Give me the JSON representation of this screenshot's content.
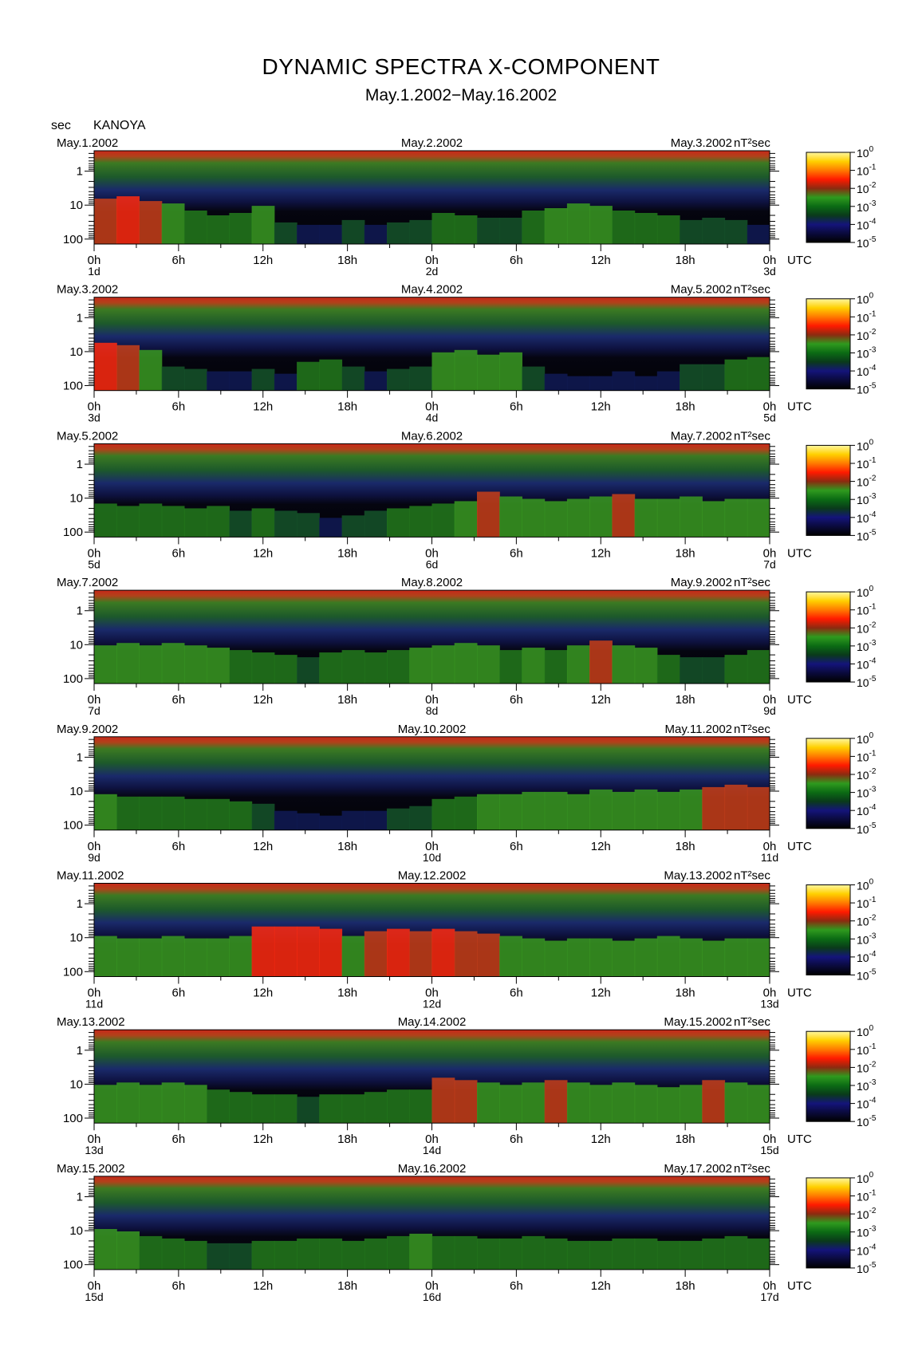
{
  "title": "DYNAMIC SPECTRA X-COMPONENT",
  "subtitle": "May.1.2002−May.16.2002",
  "y_unit_label": "sec",
  "station": "KANOYA",
  "colorbar_unit": "nT²sec",
  "utc_label": "UTC",
  "colors": {
    "colormap": [
      "#000000",
      "#0a0a3c",
      "#14147a",
      "#0a3a1a",
      "#0b6b14",
      "#2f9a1e",
      "#8c2a10",
      "#ff1a00",
      "#ff7a00",
      "#ffd000",
      "#fff7a0"
    ]
  },
  "chart_data": {
    "type": "heatmap",
    "x_axis": {
      "ticks": [
        "0h",
        "6h",
        "12h",
        "18h",
        "0h",
        "6h",
        "12h",
        "18h",
        "0h"
      ],
      "tick_hours": [
        0,
        6,
        12,
        18,
        24,
        30,
        36,
        42,
        48
      ],
      "range_hours": [
        0,
        48
      ]
    },
    "y_axis": {
      "label": "sec",
      "scale": "log",
      "ticks": [
        "1",
        "10",
        "100"
      ],
      "tick_values": [
        1,
        10,
        100
      ],
      "range": [
        0.25,
        140
      ]
    },
    "colorbar": {
      "scale": "log",
      "range": [
        1e-05,
        1
      ],
      "tick_exponents": [
        "0",
        "-1",
        "-2",
        "-3",
        "-4",
        "-5"
      ]
    },
    "panels": [
      {
        "date_left": "May.1.2002",
        "date_mid": "May.2.2002",
        "date_right": "May.3.2002",
        "day_left": "1d",
        "day_mid": "2d",
        "day_right": "3d",
        "activity": [
          0.85,
          0.9,
          0.8,
          0.75,
          0.6,
          0.5,
          0.55,
          0.7,
          0.35,
          0.3,
          0.3,
          0.4,
          0.3,
          0.35,
          0.4,
          0.55,
          0.5,
          0.45,
          0.45,
          0.6,
          0.65,
          0.75,
          0.7,
          0.6,
          0.55,
          0.5,
          0.4,
          0.45,
          0.4,
          0.3
        ]
      },
      {
        "date_left": "May.3.2002",
        "date_mid": "May.4.2002",
        "date_right": "May.5.2002",
        "day_left": "3d",
        "day_mid": "4d",
        "day_right": "5d",
        "activity": [
          0.9,
          0.85,
          0.75,
          0.4,
          0.35,
          0.3,
          0.3,
          0.35,
          0.25,
          0.5,
          0.55,
          0.4,
          0.3,
          0.35,
          0.4,
          0.7,
          0.75,
          0.65,
          0.7,
          0.4,
          0.25,
          0.2,
          0.2,
          0.3,
          0.2,
          0.3,
          0.45,
          0.45,
          0.55,
          0.6
        ]
      },
      {
        "date_left": "May.5.2002",
        "date_mid": "May.6.2002",
        "date_right": "May.7.2002",
        "day_left": "5d",
        "day_mid": "6d",
        "day_right": "7d",
        "activity": [
          0.6,
          0.55,
          0.6,
          0.55,
          0.5,
          0.55,
          0.45,
          0.5,
          0.45,
          0.4,
          0.3,
          0.35,
          0.45,
          0.5,
          0.55,
          0.6,
          0.65,
          0.85,
          0.75,
          0.7,
          0.65,
          0.7,
          0.75,
          0.8,
          0.7,
          0.7,
          0.75,
          0.65,
          0.7,
          0.7
        ]
      },
      {
        "date_left": "May.7.2002",
        "date_mid": "May.8.2002",
        "date_right": "May.9.2002",
        "day_left": "7d",
        "day_mid": "8d",
        "day_right": "9d",
        "activity": [
          0.7,
          0.75,
          0.7,
          0.75,
          0.7,
          0.65,
          0.6,
          0.55,
          0.5,
          0.45,
          0.55,
          0.6,
          0.55,
          0.6,
          0.65,
          0.7,
          0.75,
          0.7,
          0.6,
          0.65,
          0.6,
          0.7,
          0.8,
          0.7,
          0.65,
          0.5,
          0.45,
          0.45,
          0.5,
          0.6
        ]
      },
      {
        "date_left": "May.9.2002",
        "date_mid": "May.10.2002",
        "date_right": "May.11.2002",
        "day_left": "9d",
        "day_mid": "10d",
        "day_right": "11d",
        "activity": [
          0.65,
          0.6,
          0.6,
          0.6,
          0.55,
          0.55,
          0.5,
          0.45,
          0.3,
          0.25,
          0.2,
          0.3,
          0.3,
          0.35,
          0.4,
          0.55,
          0.6,
          0.65,
          0.65,
          0.7,
          0.7,
          0.65,
          0.75,
          0.7,
          0.75,
          0.7,
          0.75,
          0.8,
          0.85,
          0.8
        ]
      },
      {
        "date_left": "May.11.2002",
        "date_mid": "May.12.2002",
        "date_right": "May.13.2002",
        "day_left": "11d",
        "day_mid": "12d",
        "day_right": "13d",
        "activity": [
          0.75,
          0.7,
          0.7,
          0.75,
          0.7,
          0.7,
          0.75,
          0.95,
          0.95,
          0.95,
          0.9,
          0.75,
          0.85,
          0.9,
          0.85,
          0.9,
          0.85,
          0.8,
          0.75,
          0.7,
          0.65,
          0.7,
          0.7,
          0.65,
          0.7,
          0.75,
          0.7,
          0.65,
          0.7,
          0.7
        ]
      },
      {
        "date_left": "May.13.2002",
        "date_mid": "May.14.2002",
        "date_right": "May.15.2002",
        "day_left": "13d",
        "day_mid": "14d",
        "day_right": "15d",
        "activity": [
          0.7,
          0.75,
          0.7,
          0.75,
          0.7,
          0.6,
          0.55,
          0.5,
          0.5,
          0.45,
          0.5,
          0.5,
          0.55,
          0.6,
          0.6,
          0.85,
          0.8,
          0.75,
          0.7,
          0.75,
          0.8,
          0.75,
          0.7,
          0.75,
          0.7,
          0.65,
          0.7,
          0.8,
          0.75,
          0.7
        ]
      },
      {
        "date_left": "May.15.2002",
        "date_mid": "May.16.2002",
        "date_right": "May.17.2002",
        "day_left": "15d",
        "day_mid": "16d",
        "day_right": "17d",
        "activity": [
          0.75,
          0.7,
          0.6,
          0.55,
          0.5,
          0.45,
          0.45,
          0.5,
          0.5,
          0.55,
          0.55,
          0.5,
          0.55,
          0.6,
          0.65,
          0.6,
          0.6,
          0.55,
          0.55,
          0.6,
          0.55,
          0.5,
          0.5,
          0.55,
          0.55,
          0.5,
          0.5,
          0.55,
          0.6,
          0.55
        ]
      }
    ]
  }
}
